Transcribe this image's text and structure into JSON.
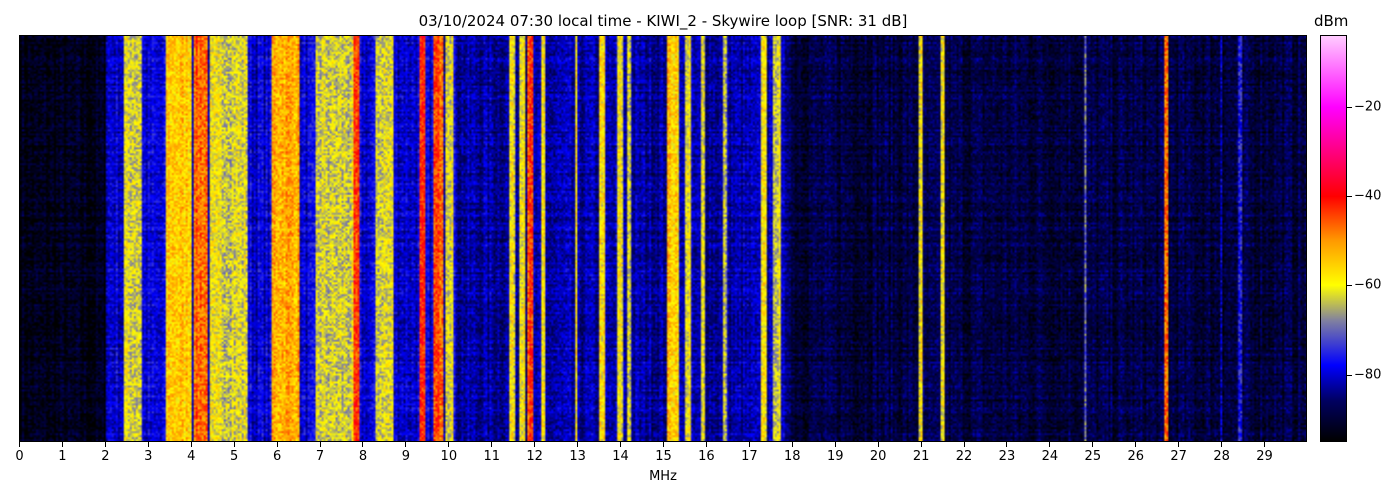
{
  "chart_data": {
    "type": "heatmap",
    "title": "03/10/2024 07:30 local time - KIWI_2 - Skywire loop [SNR: 31 dB]",
    "xlabel": "MHz",
    "ylabel": "",
    "xlim": [
      0,
      30
    ],
    "x_ticks": [
      "0",
      "1",
      "2",
      "3",
      "4",
      "5",
      "6",
      "7",
      "8",
      "9",
      "10",
      "11",
      "12",
      "13",
      "14",
      "15",
      "16",
      "17",
      "18",
      "19",
      "20",
      "21",
      "22",
      "23",
      "24",
      "25",
      "26",
      "27",
      "28",
      "29"
    ],
    "colorbar": {
      "label": "dBm",
      "range": [
        -95,
        -4
      ],
      "ticks": [
        "−20",
        "−40",
        "−60",
        "−80"
      ],
      "tick_values": [
        -20,
        -40,
        -60,
        -80
      ],
      "colormap_stops": [
        {
          "value": -95,
          "color": "#000000"
        },
        {
          "value": -86,
          "color": "#000060"
        },
        {
          "value": -78,
          "color": "#0000ff"
        },
        {
          "value": -68,
          "color": "#8080a0"
        },
        {
          "value": -60,
          "color": "#ffff00"
        },
        {
          "value": -50,
          "color": "#ff9900"
        },
        {
          "value": -40,
          "color": "#ff0000"
        },
        {
          "value": -20,
          "color": "#ff00ff"
        },
        {
          "value": -4,
          "color": "#ffccff"
        }
      ]
    },
    "noise_floor_bands": [
      {
        "from": 0,
        "to": 2,
        "level": -93
      },
      {
        "from": 2,
        "to": 10.2,
        "level": -80
      },
      {
        "from": 10.2,
        "to": 18,
        "level": -83
      },
      {
        "from": 18,
        "to": 30,
        "level": -89
      }
    ],
    "signals": [
      {
        "from": 2.45,
        "to": 2.8,
        "level": -62
      },
      {
        "from": 3.4,
        "to": 4.0,
        "level": -55
      },
      {
        "from": 4.05,
        "to": 4.35,
        "level": -47
      },
      {
        "from": 4.45,
        "to": 5.3,
        "level": -62
      },
      {
        "from": 5.9,
        "to": 6.5,
        "level": -52
      },
      {
        "from": 6.9,
        "to": 7.75,
        "level": -63
      },
      {
        "from": 7.8,
        "to": 7.9,
        "level": -45
      },
      {
        "from": 8.3,
        "to": 8.7,
        "level": -62
      },
      {
        "from": 9.35,
        "to": 9.45,
        "level": -44
      },
      {
        "from": 9.65,
        "to": 9.85,
        "level": -45
      },
      {
        "from": 9.95,
        "to": 10.1,
        "level": -60
      },
      {
        "from": 11.45,
        "to": 11.55,
        "level": -60
      },
      {
        "from": 11.65,
        "to": 11.75,
        "level": -58
      },
      {
        "from": 11.85,
        "to": 11.95,
        "level": -45
      },
      {
        "from": 12.2,
        "to": 12.25,
        "level": -60
      },
      {
        "from": 12.95,
        "to": 13.0,
        "level": -60
      },
      {
        "from": 13.55,
        "to": 13.65,
        "level": -58
      },
      {
        "from": 13.95,
        "to": 14.05,
        "level": -60
      },
      {
        "from": 14.2,
        "to": 14.25,
        "level": -62
      },
      {
        "from": 15.1,
        "to": 15.35,
        "level": -55
      },
      {
        "from": 15.55,
        "to": 15.65,
        "level": -60
      },
      {
        "from": 15.9,
        "to": 15.95,
        "level": -62
      },
      {
        "from": 16.4,
        "to": 16.45,
        "level": -64
      },
      {
        "from": 17.3,
        "to": 17.4,
        "level": -58
      },
      {
        "from": 17.6,
        "to": 17.75,
        "level": -62
      },
      {
        "from": 20.98,
        "to": 21.05,
        "level": -60
      },
      {
        "from": 21.48,
        "to": 21.53,
        "level": -60
      },
      {
        "from": 24.83,
        "to": 24.87,
        "level": -70
      },
      {
        "from": 26.73,
        "to": 26.78,
        "level": -48
      },
      {
        "from": 28.0,
        "to": 28.03,
        "level": -80
      },
      {
        "from": 28.43,
        "to": 28.47,
        "level": -78
      }
    ]
  }
}
